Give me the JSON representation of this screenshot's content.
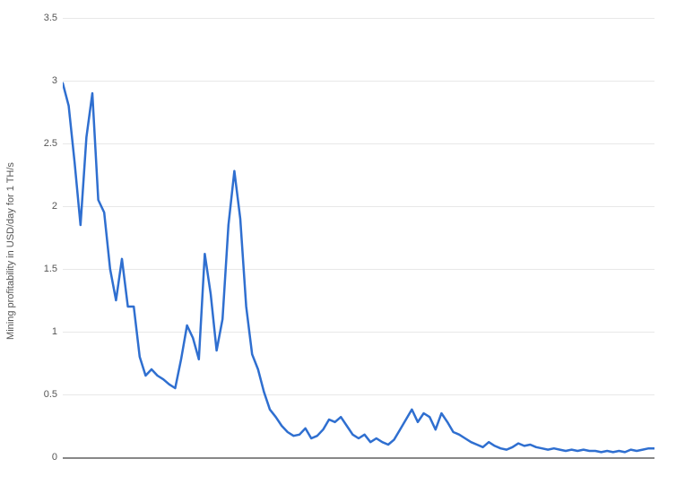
{
  "chart": {
    "type": "line",
    "ylabel": "Mining profitability in USD/day for 1 TH/s",
    "label_fontsize": 11,
    "label_color": "#555555",
    "background_color": "#ffffff",
    "grid_color": "#e8e8e8",
    "axis_color": "#888888",
    "line_color": "#2f6fd0",
    "line_width": 2.5,
    "ylim": [
      0,
      3.5
    ],
    "ytick_step": 0.5,
    "yticks": [
      0,
      0.5,
      1,
      1.5,
      2,
      2.5,
      3,
      3.5
    ],
    "xlim": [
      0,
      200
    ],
    "series": [
      {
        "x": 0,
        "y": 2.98
      },
      {
        "x": 2,
        "y": 2.8
      },
      {
        "x": 4,
        "y": 2.35
      },
      {
        "x": 6,
        "y": 1.85
      },
      {
        "x": 8,
        "y": 2.55
      },
      {
        "x": 10,
        "y": 2.9
      },
      {
        "x": 12,
        "y": 2.05
      },
      {
        "x": 14,
        "y": 1.95
      },
      {
        "x": 16,
        "y": 1.5
      },
      {
        "x": 18,
        "y": 1.25
      },
      {
        "x": 20,
        "y": 1.58
      },
      {
        "x": 22,
        "y": 1.2
      },
      {
        "x": 24,
        "y": 1.2
      },
      {
        "x": 26,
        "y": 0.8
      },
      {
        "x": 28,
        "y": 0.65
      },
      {
        "x": 30,
        "y": 0.7
      },
      {
        "x": 32,
        "y": 0.65
      },
      {
        "x": 34,
        "y": 0.62
      },
      {
        "x": 36,
        "y": 0.58
      },
      {
        "x": 38,
        "y": 0.55
      },
      {
        "x": 40,
        "y": 0.78
      },
      {
        "x": 42,
        "y": 1.05
      },
      {
        "x": 44,
        "y": 0.95
      },
      {
        "x": 46,
        "y": 0.78
      },
      {
        "x": 48,
        "y": 1.62
      },
      {
        "x": 50,
        "y": 1.3
      },
      {
        "x": 52,
        "y": 0.85
      },
      {
        "x": 54,
        "y": 1.1
      },
      {
        "x": 56,
        "y": 1.85
      },
      {
        "x": 58,
        "y": 2.28
      },
      {
        "x": 60,
        "y": 1.9
      },
      {
        "x": 62,
        "y": 1.2
      },
      {
        "x": 64,
        "y": 0.82
      },
      {
        "x": 66,
        "y": 0.7
      },
      {
        "x": 68,
        "y": 0.52
      },
      {
        "x": 70,
        "y": 0.38
      },
      {
        "x": 72,
        "y": 0.32
      },
      {
        "x": 74,
        "y": 0.25
      },
      {
        "x": 76,
        "y": 0.2
      },
      {
        "x": 78,
        "y": 0.17
      },
      {
        "x": 80,
        "y": 0.18
      },
      {
        "x": 82,
        "y": 0.23
      },
      {
        "x": 84,
        "y": 0.15
      },
      {
        "x": 86,
        "y": 0.17
      },
      {
        "x": 88,
        "y": 0.22
      },
      {
        "x": 90,
        "y": 0.3
      },
      {
        "x": 92,
        "y": 0.28
      },
      {
        "x": 94,
        "y": 0.32
      },
      {
        "x": 96,
        "y": 0.25
      },
      {
        "x": 98,
        "y": 0.18
      },
      {
        "x": 100,
        "y": 0.15
      },
      {
        "x": 102,
        "y": 0.18
      },
      {
        "x": 104,
        "y": 0.12
      },
      {
        "x": 106,
        "y": 0.15
      },
      {
        "x": 108,
        "y": 0.12
      },
      {
        "x": 110,
        "y": 0.1
      },
      {
        "x": 112,
        "y": 0.14
      },
      {
        "x": 114,
        "y": 0.22
      },
      {
        "x": 116,
        "y": 0.3
      },
      {
        "x": 118,
        "y": 0.38
      },
      {
        "x": 120,
        "y": 0.28
      },
      {
        "x": 122,
        "y": 0.35
      },
      {
        "x": 124,
        "y": 0.32
      },
      {
        "x": 126,
        "y": 0.22
      },
      {
        "x": 128,
        "y": 0.35
      },
      {
        "x": 130,
        "y": 0.28
      },
      {
        "x": 132,
        "y": 0.2
      },
      {
        "x": 134,
        "y": 0.18
      },
      {
        "x": 136,
        "y": 0.15
      },
      {
        "x": 138,
        "y": 0.12
      },
      {
        "x": 140,
        "y": 0.1
      },
      {
        "x": 142,
        "y": 0.08
      },
      {
        "x": 144,
        "y": 0.12
      },
      {
        "x": 146,
        "y": 0.09
      },
      {
        "x": 148,
        "y": 0.07
      },
      {
        "x": 150,
        "y": 0.06
      },
      {
        "x": 152,
        "y": 0.08
      },
      {
        "x": 154,
        "y": 0.11
      },
      {
        "x": 156,
        "y": 0.09
      },
      {
        "x": 158,
        "y": 0.1
      },
      {
        "x": 160,
        "y": 0.08
      },
      {
        "x": 162,
        "y": 0.07
      },
      {
        "x": 164,
        "y": 0.06
      },
      {
        "x": 166,
        "y": 0.07
      },
      {
        "x": 168,
        "y": 0.06
      },
      {
        "x": 170,
        "y": 0.05
      },
      {
        "x": 172,
        "y": 0.06
      },
      {
        "x": 174,
        "y": 0.05
      },
      {
        "x": 176,
        "y": 0.06
      },
      {
        "x": 178,
        "y": 0.05
      },
      {
        "x": 180,
        "y": 0.05
      },
      {
        "x": 182,
        "y": 0.04
      },
      {
        "x": 184,
        "y": 0.05
      },
      {
        "x": 186,
        "y": 0.04
      },
      {
        "x": 188,
        "y": 0.05
      },
      {
        "x": 190,
        "y": 0.04
      },
      {
        "x": 192,
        "y": 0.06
      },
      {
        "x": 194,
        "y": 0.05
      },
      {
        "x": 196,
        "y": 0.06
      },
      {
        "x": 198,
        "y": 0.07
      },
      {
        "x": 200,
        "y": 0.07
      }
    ]
  }
}
